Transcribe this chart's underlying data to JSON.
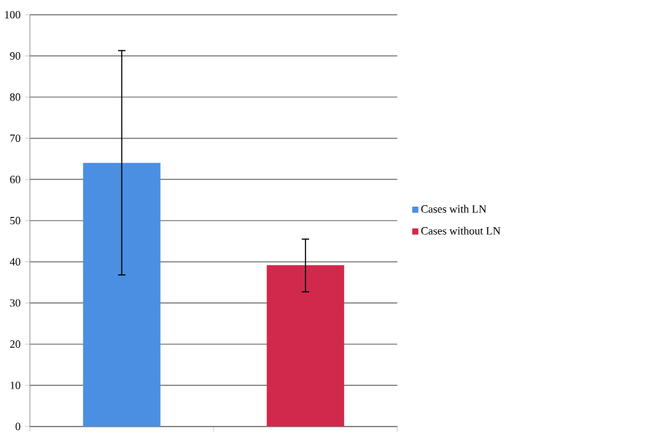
{
  "chart_data": {
    "type": "bar",
    "categories": [
      null,
      null
    ],
    "series": [
      {
        "name": "Cases with LN",
        "color": "#4a8fe2",
        "values": [
          64,
          null
        ],
        "errors": [
          [
            36.8,
            91.3
          ],
          null
        ]
      },
      {
        "name": "Cases without LN",
        "color": "#d0294c",
        "values": [
          null,
          39.2
        ],
        "errors": [
          null,
          [
            32.7,
            45.5
          ]
        ]
      }
    ],
    "ylim": [
      0,
      100
    ],
    "yticks": [
      0,
      10,
      20,
      30,
      40,
      50,
      60,
      70,
      80,
      90,
      100
    ],
    "grid": "y",
    "legend": "right"
  }
}
